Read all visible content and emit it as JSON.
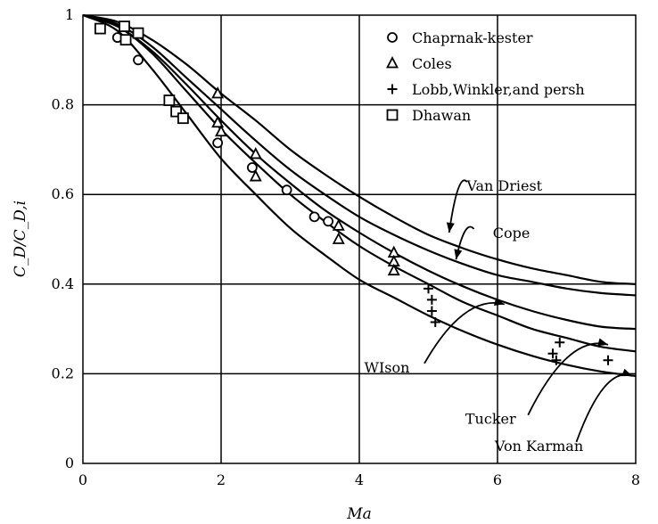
{
  "chart_data": {
    "type": "scatter",
    "title": "",
    "xlabel": "Ma",
    "ylabel": "C_D/C_D,i",
    "xlim": [
      0,
      8
    ],
    "ylim": [
      0,
      1
    ],
    "xticks": [
      0,
      2,
      4,
      6,
      8
    ],
    "yticks": [
      0,
      0.2,
      0.4,
      0.6,
      0.8,
      1
    ],
    "xtick_labels": [
      "0",
      "2",
      "4",
      "6",
      "8"
    ],
    "ytick_labels": [
      "0",
      "0.2",
      "0.4",
      "0.6",
      "0.8",
      "1"
    ],
    "grid": true,
    "legend_position": "top-right",
    "series": [
      {
        "name": "Chaprnak-kester",
        "marker": "circle",
        "points": [
          [
            0.5,
            0.95
          ],
          [
            0.8,
            0.9
          ],
          [
            1.95,
            0.715
          ],
          [
            2.45,
            0.66
          ],
          [
            2.95,
            0.61
          ],
          [
            3.35,
            0.55
          ],
          [
            3.55,
            0.54
          ]
        ]
      },
      {
        "name": "Coles",
        "marker": "triangle",
        "points": [
          [
            1.95,
            0.825
          ],
          [
            1.95,
            0.76
          ],
          [
            2.0,
            0.74
          ],
          [
            2.5,
            0.69
          ],
          [
            2.5,
            0.64
          ],
          [
            3.7,
            0.53
          ],
          [
            3.7,
            0.5
          ],
          [
            4.5,
            0.47
          ],
          [
            4.5,
            0.45
          ],
          [
            4.5,
            0.43
          ]
        ]
      },
      {
        "name": "Lobb,Winkler,and persh",
        "marker": "plus",
        "points": [
          [
            5.0,
            0.39
          ],
          [
            5.05,
            0.365
          ],
          [
            5.05,
            0.34
          ],
          [
            5.1,
            0.315
          ],
          [
            6.8,
            0.245
          ],
          [
            6.85,
            0.23
          ],
          [
            6.9,
            0.27
          ],
          [
            7.6,
            0.23
          ]
        ]
      },
      {
        "name": "Dhawan",
        "marker": "square",
        "points": [
          [
            0.25,
            0.97
          ],
          [
            0.6,
            0.975
          ],
          [
            0.62,
            0.945
          ],
          [
            0.8,
            0.96
          ],
          [
            1.25,
            0.81
          ],
          [
            1.35,
            0.785
          ],
          [
            1.45,
            0.77
          ]
        ]
      }
    ],
    "curves": [
      {
        "name": "Van Driest",
        "x": [
          0,
          0.5,
          1,
          1.5,
          2,
          2.5,
          3,
          3.5,
          4,
          4.5,
          5,
          5.5,
          6,
          6.5,
          7,
          7.5,
          8
        ],
        "y": [
          1.0,
          0.985,
          0.945,
          0.89,
          0.825,
          0.765,
          0.7,
          0.645,
          0.595,
          0.55,
          0.51,
          0.48,
          0.455,
          0.435,
          0.42,
          0.405,
          0.4
        ]
      },
      {
        "name": "Cope",
        "x": [
          0,
          0.5,
          1,
          1.5,
          2,
          2.5,
          3,
          3.5,
          4,
          4.5,
          5,
          5.5,
          6,
          6.5,
          7,
          7.5,
          8
        ],
        "y": [
          1.0,
          0.98,
          0.93,
          0.86,
          0.79,
          0.72,
          0.655,
          0.6,
          0.55,
          0.51,
          0.475,
          0.445,
          0.42,
          0.405,
          0.39,
          0.38,
          0.375
        ]
      },
      {
        "name": "WIson",
        "x": [
          0,
          0.5,
          1,
          1.5,
          2,
          2.5,
          3,
          3.5,
          4,
          4.5,
          5,
          5.5,
          6,
          6.5,
          7,
          7.5,
          8
        ],
        "y": [
          1.0,
          0.975,
          0.92,
          0.845,
          0.765,
          0.69,
          0.625,
          0.565,
          0.515,
          0.47,
          0.43,
          0.395,
          0.365,
          0.34,
          0.32,
          0.305,
          0.3
        ]
      },
      {
        "name": "Tucker",
        "x": [
          0,
          0.5,
          1,
          1.5,
          2,
          2.5,
          3,
          3.5,
          4,
          4.5,
          5,
          5.5,
          6,
          6.5,
          7,
          7.5,
          8
        ],
        "y": [
          1.0,
          0.975,
          0.915,
          0.83,
          0.745,
          0.67,
          0.6,
          0.54,
          0.485,
          0.44,
          0.4,
          0.36,
          0.33,
          0.3,
          0.28,
          0.26,
          0.25
        ]
      },
      {
        "name": "Von Karman",
        "x": [
          0,
          0.5,
          1,
          1.5,
          2,
          2.5,
          3,
          3.5,
          4,
          4.5,
          5,
          5.5,
          6,
          6.5,
          7,
          7.5,
          8
        ],
        "y": [
          1.0,
          0.965,
          0.88,
          0.78,
          0.68,
          0.6,
          0.525,
          0.465,
          0.41,
          0.37,
          0.33,
          0.295,
          0.265,
          0.24,
          0.22,
          0.205,
          0.195
        ]
      }
    ],
    "annotations": [
      {
        "text": "Van Driest",
        "x": 6.1,
        "y": 0.62,
        "arrow_to": [
          5.3,
          0.515
        ]
      },
      {
        "text": "Cope",
        "x": 6.2,
        "y": 0.515,
        "arrow_to": [
          5.4,
          0.455
        ]
      },
      {
        "text": "WIson",
        "x": 4.4,
        "y": 0.215,
        "arrow_to": [
          6.1,
          0.355
        ]
      },
      {
        "text": "Tucker",
        "x": 5.9,
        "y": 0.1,
        "arrow_to": [
          7.6,
          0.265
        ]
      },
      {
        "text": "Von Karman",
        "x": 6.6,
        "y": 0.04,
        "arrow_to": [
          7.95,
          0.195
        ]
      }
    ]
  }
}
